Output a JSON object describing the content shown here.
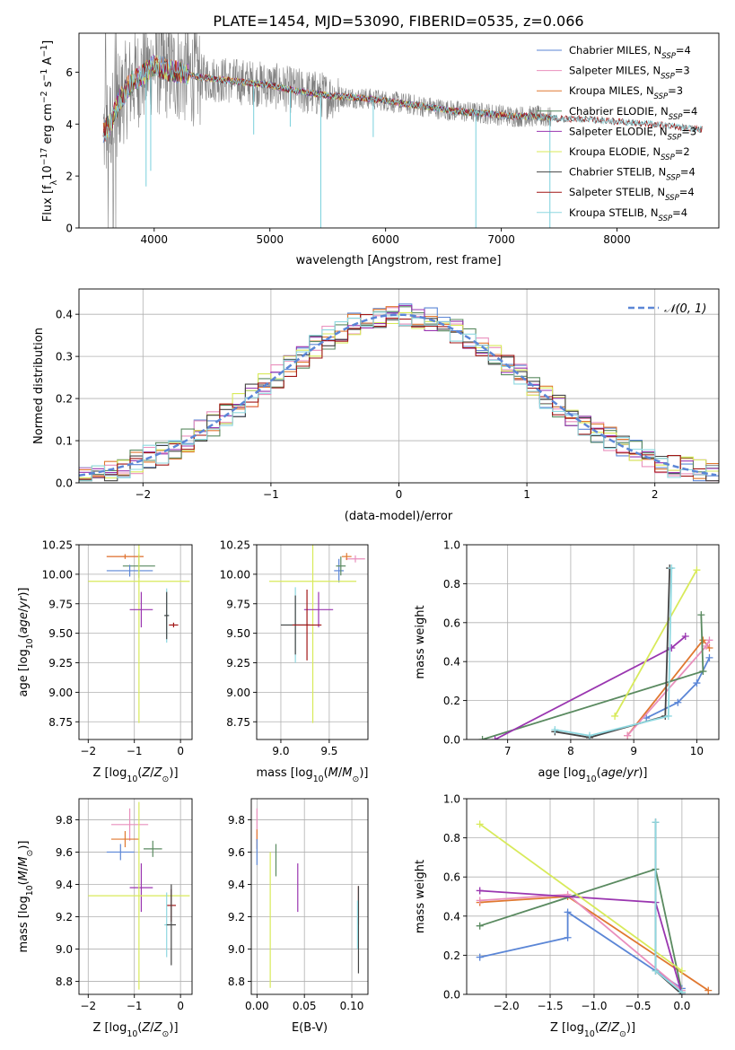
{
  "figure": {
    "title": "PLATE=1454, MJD=53090, FIBERID=0535, z=0.066"
  },
  "colors": {
    "chabrier_miles": "#5b86d6",
    "salpeter_miles": "#e98fbd",
    "kroupa_miles": "#e07830",
    "chabrier_elodie": "#5a8a60",
    "salpeter_elodie": "#9a36b0",
    "kroupa_elodie": "#d8ea5a",
    "chabrier_stelib": "#444444",
    "salpeter_stelib": "#a11616",
    "kroupa_stelib": "#8ed8e0",
    "data_spectrum": "#808080",
    "normal_curve": "#5b86d6"
  },
  "chart_data": [
    {
      "id": "spectrum",
      "type": "line",
      "title": "PLATE=1454, MJD=53090, FIBERID=0535, z=0.066",
      "xlabel": "wavelength [Angstrom, rest frame]",
      "ylabel": "Flux [f_λ10^-17 erg cm^-2 s^-1 A^-1]",
      "xlim": [
        3350,
        8880
      ],
      "ylim": [
        0,
        7.5
      ],
      "xticks": [
        4000,
        5000,
        6000,
        7000,
        8000
      ],
      "yticks": [
        0,
        2,
        4,
        6
      ],
      "grid": false,
      "legend_position": "top-right",
      "legend": [
        {
          "label": "Chabrier MILES, N",
          "sub": "SSP",
          "eq": "=4",
          "color_key": "chabrier_miles"
        },
        {
          "label": "Salpeter MILES, N",
          "sub": "SSP",
          "eq": "=3",
          "color_key": "salpeter_miles"
        },
        {
          "label": "Kroupa MILES, N",
          "sub": "SSP",
          "eq": "=3",
          "color_key": "kroupa_miles"
        },
        {
          "label": "Chabrier ELODIE, N",
          "sub": "SSP",
          "eq": "=4",
          "color_key": "chabrier_elodie"
        },
        {
          "label": "Salpeter ELODIE, N",
          "sub": "SSP",
          "eq": "=3",
          "color_key": "salpeter_elodie"
        },
        {
          "label": "Kroupa ELODIE, N",
          "sub": "SSP",
          "eq": "=2",
          "color_key": "kroupa_elodie"
        },
        {
          "label": "Chabrier STELIB, N",
          "sub": "SSP",
          "eq": "=4",
          "color_key": "chabrier_stelib"
        },
        {
          "label": "Salpeter STELIB, N",
          "sub": "SSP",
          "eq": "=4",
          "color_key": "salpeter_stelib"
        },
        {
          "label": "Kroupa STELIB, N",
          "sub": "SSP",
          "eq": "=4",
          "color_key": "kroupa_stelib"
        }
      ],
      "continuum": {
        "x": [
          3550,
          3620,
          3700,
          3800,
          3900,
          4000,
          4100,
          4200,
          4400,
          4600,
          4800,
          5000,
          5200,
          5500,
          5800,
          6000,
          6300,
          6600,
          6900,
          7100,
          7300,
          7500,
          7700,
          8000,
          8300,
          8500,
          8700
        ],
        "y": [
          3.6,
          4.0,
          4.9,
          5.6,
          5.9,
          6.3,
          6.1,
          6.0,
          5.8,
          5.7,
          5.6,
          5.5,
          5.3,
          5.1,
          5.0,
          4.9,
          4.7,
          4.5,
          4.4,
          4.3,
          4.3,
          4.2,
          4.2,
          4.1,
          4.0,
          3.9,
          3.8
        ]
      },
      "model_range": [
        3560,
        8740
      ],
      "data_range": [
        3560,
        7430
      ],
      "absorption_features": [
        {
          "x": 3930,
          "y": 1.6
        },
        {
          "x": 3970,
          "y": 2.2
        },
        {
          "x": 4860,
          "y": 3.6
        },
        {
          "x": 5176,
          "y": 3.9
        },
        {
          "x": 5440,
          "y": 0.0
        },
        {
          "x": 5893,
          "y": 3.5
        },
        {
          "x": 6780,
          "y": 0.0
        },
        {
          "x": 7420,
          "y": 0.0
        }
      ]
    },
    {
      "id": "residuals",
      "type": "step",
      "xlabel": "(data-model)/error",
      "ylabel": "Normed distribution",
      "xlim": [
        -2.5,
        2.5
      ],
      "ylim": [
        0,
        0.46
      ],
      "xticks": [
        -2,
        -1,
        0,
        1,
        2
      ],
      "yticks": [
        0.0,
        0.1,
        0.2,
        0.3,
        0.4
      ],
      "grid": true,
      "legend_position": "top-right",
      "legend_label": "𝒩(0, 1)",
      "bin_width": 0.1,
      "bin_start": -2.5
    },
    {
      "id": "age_vs_Z",
      "type": "errorbar",
      "xlabel": "Z [log10(Z/Z⊙)]",
      "ylabel": "age [log10(age/yr)]",
      "xlim": [
        -2.2,
        0.25
      ],
      "ylim": [
        8.6,
        10.25
      ],
      "xticks": [
        -2,
        -1,
        0
      ],
      "yticks": [
        8.75,
        9.0,
        9.25,
        9.5,
        9.75,
        10.0,
        10.25
      ],
      "grid": true,
      "points": [
        {
          "color_key": "salpeter_miles",
          "x": -1.2,
          "xerr": 0.4,
          "y": 10.15,
          "yerr": 0.02
        },
        {
          "color_key": "kroupa_miles",
          "x": -1.2,
          "xerr": 0.4,
          "y": 10.15,
          "yerr": 0.02
        },
        {
          "color_key": "chabrier_elodie",
          "x": -0.9,
          "xerr": 0.35,
          "y": 10.07,
          "yerr": 0.1
        },
        {
          "color_key": "chabrier_miles",
          "x": -1.1,
          "xerr": 0.5,
          "y": 10.03,
          "yerr": 0.05
        },
        {
          "color_key": "kroupa_elodie",
          "x": -0.9,
          "xerr": 1.1,
          "y": 9.94,
          "yerr": 1.2
        },
        {
          "color_key": "salpeter_elodie",
          "x": -0.85,
          "xerr": 0.25,
          "y": 9.7,
          "yerr": 0.15
        },
        {
          "color_key": "kroupa_stelib",
          "x": -0.3,
          "xerr": 0.05,
          "y": 9.65,
          "yerr": 0.23
        },
        {
          "color_key": "chabrier_stelib",
          "x": -0.3,
          "xerr": 0.05,
          "y": 9.65,
          "yerr": 0.2
        },
        {
          "color_key": "salpeter_stelib",
          "x": -0.15,
          "xerr": 0.1,
          "y": 9.57,
          "yerr": 0.02
        }
      ]
    },
    {
      "id": "age_vs_mass",
      "type": "errorbar",
      "xlabel": "mass [log10(M/M⊙)]",
      "ylabel": "",
      "xlim": [
        8.75,
        9.9
      ],
      "ylim": [
        8.6,
        10.25
      ],
      "xticks": [
        9.0,
        9.5
      ],
      "yticks": [
        8.75,
        9.0,
        9.25,
        9.5,
        9.75,
        10.0,
        10.25
      ],
      "grid": true,
      "points": [
        {
          "color_key": "salpeter_miles",
          "x": 9.77,
          "xerr": 0.1,
          "y": 10.13,
          "yerr": 0.03
        },
        {
          "color_key": "kroupa_miles",
          "x": 9.68,
          "xerr": 0.05,
          "y": 10.15,
          "yerr": 0.03
        },
        {
          "color_key": "chabrier_miles",
          "x": 9.6,
          "xerr": 0.05,
          "y": 10.03,
          "yerr": 0.1
        },
        {
          "color_key": "chabrier_elodie",
          "x": 9.62,
          "xerr": 0.05,
          "y": 10.07,
          "yerr": 0.08
        },
        {
          "color_key": "kroupa_elodie",
          "x": 9.33,
          "xerr": 0.45,
          "y": 9.94,
          "yerr": 1.2
        },
        {
          "color_key": "salpeter_elodie",
          "x": 9.39,
          "xerr": 0.15,
          "y": 9.7,
          "yerr": 0.15
        },
        {
          "color_key": "kroupa_stelib",
          "x": 9.15,
          "xerr": 0.15,
          "y": 9.57,
          "yerr": 0.32
        },
        {
          "color_key": "chabrier_stelib",
          "x": 9.15,
          "xerr": 0.15,
          "y": 9.57,
          "yerr": 0.25
        },
        {
          "color_key": "salpeter_stelib",
          "x": 9.27,
          "xerr": 0.15,
          "y": 9.57,
          "yerr": 0.3
        }
      ]
    },
    {
      "id": "weight_vs_age",
      "type": "line",
      "xlabel": "age [log10(age/yr)]",
      "ylabel": "mass weight",
      "xlim": [
        6.35,
        10.35
      ],
      "ylim": [
        0,
        1.0
      ],
      "xticks": [
        7,
        8,
        9,
        10
      ],
      "yticks": [
        0.0,
        0.2,
        0.4,
        0.6,
        0.8,
        1.0
      ],
      "grid": true,
      "series": [
        {
          "color_key": "chabrier_miles",
          "x": [
            9.2,
            9.7,
            10.0,
            10.2
          ],
          "y": [
            0.11,
            0.19,
            0.29,
            0.42
          ]
        },
        {
          "color_key": "kroupa_miles",
          "x": [
            8.9,
            10.1,
            10.2
          ],
          "y": [
            0.02,
            0.51,
            0.47
          ]
        },
        {
          "color_key": "salpeter_miles",
          "x": [
            8.9,
            10.15,
            10.2
          ],
          "y": [
            0.02,
            0.48,
            0.51
          ]
        },
        {
          "color_key": "chabrier_elodie",
          "x": [
            6.6,
            10.1,
            10.07
          ],
          "y": [
            0.0,
            0.35,
            0.64
          ]
        },
        {
          "color_key": "salpeter_elodie",
          "x": [
            6.8,
            9.6,
            9.82
          ],
          "y": [
            0.0,
            0.47,
            0.53
          ]
        },
        {
          "color_key": "kroupa_elodie",
          "x": [
            8.7,
            10.0
          ],
          "y": [
            0.12,
            0.87
          ]
        },
        {
          "color_key": "chabrier_stelib",
          "x": [
            7.75,
            8.3,
            9.5,
            9.57
          ],
          "y": [
            0.04,
            0.01,
            0.12,
            0.88
          ]
        },
        {
          "color_key": "kroupa_stelib",
          "x": [
            7.75,
            8.3,
            9.55,
            9.6
          ],
          "y": [
            0.05,
            0.02,
            0.12,
            0.88
          ]
        }
      ]
    },
    {
      "id": "mass_vs_Z",
      "type": "errorbar",
      "xlabel": "Z [log10(Z/Z⊙)]",
      "ylabel": "mass [log10(M/M⊙)]",
      "xlim": [
        -2.2,
        0.25
      ],
      "ylim": [
        8.72,
        9.93
      ],
      "xticks": [
        -2,
        -1,
        0
      ],
      "yticks": [
        8.8,
        9.0,
        9.2,
        9.4,
        9.6,
        9.8
      ],
      "grid": true,
      "points": [
        {
          "color_key": "salpeter_miles",
          "x": -1.1,
          "xerr": 0.4,
          "y": 9.77,
          "yerr": 0.1
        },
        {
          "color_key": "kroupa_miles",
          "x": -1.2,
          "xerr": 0.3,
          "y": 9.68,
          "yerr": 0.05
        },
        {
          "color_key": "chabrier_elodie",
          "x": -0.6,
          "xerr": 0.2,
          "y": 9.62,
          "yerr": 0.05
        },
        {
          "color_key": "chabrier_miles",
          "x": -1.3,
          "xerr": 0.3,
          "y": 9.6,
          "yerr": 0.05
        },
        {
          "color_key": "salpeter_elodie",
          "x": -0.85,
          "xerr": 0.25,
          "y": 9.38,
          "yerr": 0.15
        },
        {
          "color_key": "kroupa_elodie",
          "x": -0.9,
          "xerr": 1.1,
          "y": 9.33,
          "yerr": 0.58
        },
        {
          "color_key": "salpeter_stelib",
          "x": -0.2,
          "xerr": 0.1,
          "y": 9.27,
          "yerr": 0.1
        },
        {
          "color_key": "kroupa_stelib",
          "x": -0.3,
          "xerr": 0.05,
          "y": 9.15,
          "yerr": 0.2
        },
        {
          "color_key": "chabrier_stelib",
          "x": -0.2,
          "xerr": 0.1,
          "y": 9.15,
          "yerr": 0.25
        }
      ]
    },
    {
      "id": "mass_vs_EBV",
      "type": "errorbar",
      "xlabel": "E(B-V)",
      "ylabel": "",
      "xlim": [
        -0.006,
        0.117
      ],
      "ylim": [
        8.72,
        9.93
      ],
      "xticks": [
        0.0,
        0.05,
        0.1
      ],
      "yticks": [
        8.8,
        9.0,
        9.2,
        9.4,
        9.6,
        9.8
      ],
      "grid": true,
      "points": [
        {
          "color_key": "salpeter_miles",
          "x": 0.0,
          "xerr": 0.0,
          "y": 9.77,
          "yerr": 0.1
        },
        {
          "color_key": "kroupa_miles",
          "x": 0.0,
          "xerr": 0.0,
          "y": 9.68,
          "yerr": 0.06
        },
        {
          "color_key": "chabrier_miles",
          "x": 0.0,
          "xerr": 0.0,
          "y": 9.6,
          "yerr": 0.08
        },
        {
          "color_key": "kroupa_elodie",
          "x": 0.014,
          "xerr": 0.0,
          "y": 9.18,
          "yerr": 0.42
        },
        {
          "color_key": "chabrier_elodie",
          "x": 0.02,
          "xerr": 0.0,
          "y": 9.55,
          "yerr": 0.1
        },
        {
          "color_key": "salpeter_elodie",
          "x": 0.043,
          "xerr": 0.0,
          "y": 9.38,
          "yerr": 0.15
        },
        {
          "color_key": "salpeter_stelib",
          "x": 0.107,
          "xerr": 0.0,
          "y": 9.27,
          "yerr": 0.12
        },
        {
          "color_key": "chabrier_stelib",
          "x": 0.107,
          "xerr": 0.0,
          "y": 9.12,
          "yerr": 0.27
        },
        {
          "color_key": "kroupa_stelib",
          "x": 0.106,
          "xerr": 0.0,
          "y": 9.15,
          "yerr": 0.15
        }
      ]
    },
    {
      "id": "weight_vs_Z",
      "type": "line",
      "xlabel": "Z [log10(Z/Z⊙)]",
      "ylabel": "mass weight",
      "xlim": [
        -2.45,
        0.42
      ],
      "ylim": [
        0,
        1.0
      ],
      "xticks": [
        -2.0,
        -1.5,
        -1.0,
        -0.5,
        0.0
      ],
      "yticks": [
        0.0,
        0.2,
        0.4,
        0.6,
        0.8,
        1.0
      ],
      "grid": true,
      "series": [
        {
          "color_key": "chabrier_miles",
          "x": [
            -2.3,
            -1.3,
            -1.3,
            0.0
          ],
          "y": [
            0.19,
            0.29,
            0.42,
            0.03
          ]
        },
        {
          "color_key": "kroupa_miles",
          "x": [
            -2.3,
            -1.3,
            0.3
          ],
          "y": [
            0.47,
            0.5,
            0.02
          ]
        },
        {
          "color_key": "salpeter_miles",
          "x": [
            -2.3,
            -1.3,
            0.0
          ],
          "y": [
            0.48,
            0.51,
            0.02
          ]
        },
        {
          "color_key": "chabrier_elodie",
          "x": [
            -2.3,
            -0.3,
            0.0
          ],
          "y": [
            0.35,
            0.64,
            0.01
          ]
        },
        {
          "color_key": "salpeter_elodie",
          "x": [
            -2.3,
            -0.3,
            0.0
          ],
          "y": [
            0.53,
            0.47,
            0.0
          ]
        },
        {
          "color_key": "kroupa_elodie",
          "x": [
            -2.3,
            0.0
          ],
          "y": [
            0.87,
            0.12
          ]
        },
        {
          "color_key": "chabrier_stelib",
          "x": [
            -0.3,
            -0.3,
            0.0
          ],
          "y": [
            0.88,
            0.12,
            0.0
          ]
        },
        {
          "color_key": "kroupa_stelib",
          "x": [
            -0.3,
            -0.3,
            0.0
          ],
          "y": [
            0.88,
            0.12,
            0.01
          ]
        }
      ]
    }
  ]
}
